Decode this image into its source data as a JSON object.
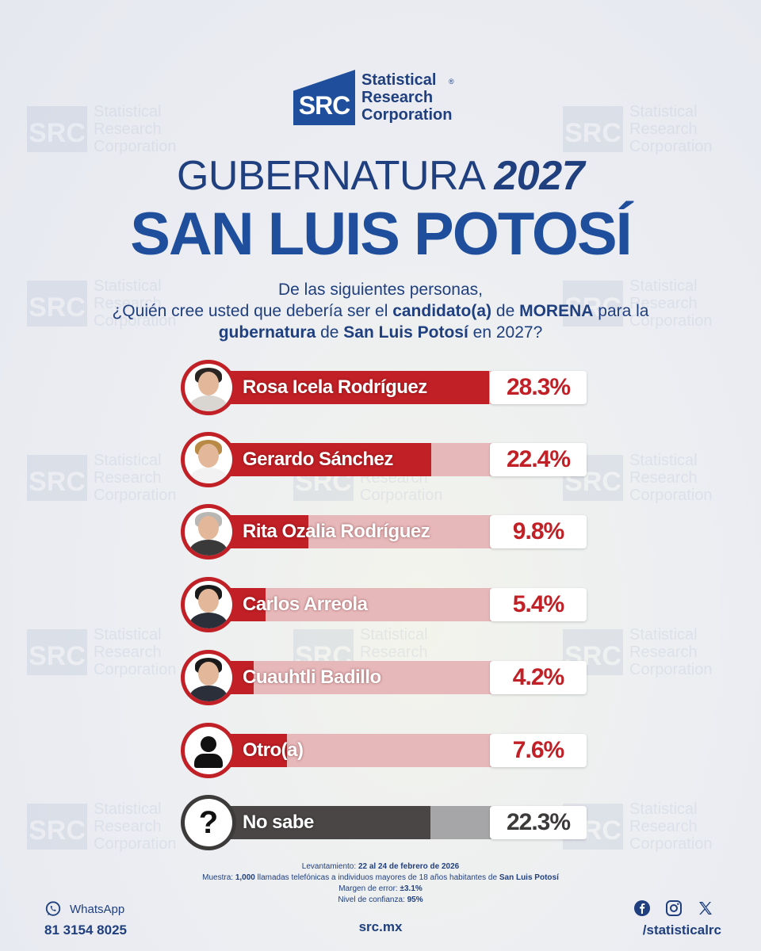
{
  "brand": {
    "logo_letters": "SRC",
    "name_line1": "Statistical",
    "name_line2": "Research",
    "name_line3": "Corporation",
    "registered": "®"
  },
  "title": {
    "line1_light": "GUBERNATURA",
    "line1_bold": "2027",
    "line2": "SAN LUIS POTOSÍ"
  },
  "question": {
    "line1": "De las siguientes personas,",
    "line2_a": "¿Quién cree usted que debería ser el",
    "line2_b": "candidato(a)",
    "line2_c": "de",
    "line2_d": "MORENA",
    "line2_e": "para la",
    "line3_a": "gubernatura",
    "line3_b": "de",
    "line3_c": "San Luis Potosí",
    "line3_d": "en 2027?"
  },
  "chart_data": {
    "type": "bar",
    "orientation": "horizontal",
    "categories": [
      "Rosa Icela Rodríguez",
      "Gerardo Sánchez",
      "Rita Ozalia Rodríguez",
      "Carlos Arreola",
      "Cuauhtli Badillo",
      "Otro(a)",
      "No sabe"
    ],
    "values": [
      28.3,
      22.4,
      9.8,
      5.4,
      4.2,
      7.6,
      22.3
    ],
    "value_labels": [
      "28.3%",
      "22.4%",
      "9.8%",
      "5.4%",
      "4.2%",
      "7.6%",
      "22.3%"
    ],
    "unit": "%",
    "xlim": [
      0,
      30
    ],
    "colors": {
      "fill": "#c02026",
      "track": "#e7b8ba",
      "unknown_fill": "#4a4646",
      "unknown_track": "#a6a6a8"
    }
  },
  "avatars": [
    {
      "icon": "portrait-rosa-icela-icon",
      "hair": "#2a2522",
      "body": "#d9d6d2"
    },
    {
      "icon": "portrait-gerardo-sanchez-icon",
      "hair": "#b98a45",
      "body": "#f2f2f2"
    },
    {
      "icon": "portrait-rita-ozalia-icon",
      "hair": "#b9b7b3",
      "body": "#3a3a3a"
    },
    {
      "icon": "portrait-carlos-arreola-icon",
      "hair": "#1a1a1a",
      "body": "#2b2f3a"
    },
    {
      "icon": "portrait-cuauhtli-badillo-icon",
      "hair": "#1a1a1a",
      "body": "#2b2f3a"
    },
    {
      "icon": "person-icon"
    },
    {
      "icon": "question-mark-icon"
    }
  ],
  "notes": {
    "levantamiento_label": "Levantamiento:",
    "levantamiento_value": "22 al 24 de febrero de 2026",
    "muestra_label": "Muestra:",
    "muestra_value_b": "1,000",
    "muestra_value_rest": "llamadas telefónicas a individuos mayores de 18 años habitantes de",
    "muestra_place": "San Luis Potosí",
    "margen_label": "Margen de error:",
    "margen_value": "±3.1%",
    "nivel_label": "Nivel de confianza:",
    "nivel_value": "95%"
  },
  "footer": {
    "whatsapp_label": "WhatsApp",
    "whatsapp_number": "81 3154 8025",
    "website": "src.mx",
    "social_handle": "/statisticalrc"
  }
}
